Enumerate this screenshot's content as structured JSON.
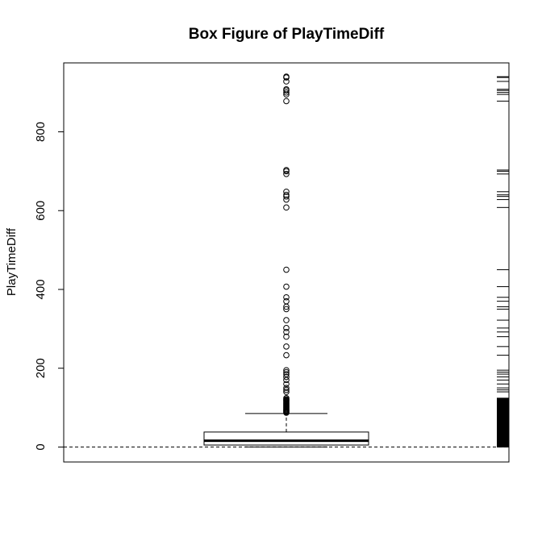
{
  "chart_data": {
    "type": "box",
    "title": "Box Figure of PlayTimeDiff",
    "ylabel": "PlayTimeDiff",
    "xlabel": "",
    "ylim": [
      -38,
      975
    ],
    "yticks": [
      0,
      200,
      400,
      600,
      800
    ],
    "box": {
      "q1": 5,
      "median": 16,
      "q3": 38,
      "whisker_low": 0,
      "whisker_high": 85
    },
    "reference_line": 0,
    "outliers": [
      87,
      89,
      91,
      93,
      95,
      97,
      99,
      101,
      103,
      105,
      107,
      109,
      111,
      113,
      115,
      117,
      119,
      121,
      124,
      140,
      145,
      150,
      160,
      170,
      178,
      185,
      190,
      195,
      233,
      255,
      280,
      292,
      302,
      322,
      350,
      356,
      370,
      380,
      407,
      450,
      608,
      628,
      636,
      640,
      648,
      693,
      700,
      703,
      878,
      895,
      900,
      905,
      908,
      928,
      938,
      940
    ],
    "rug": [
      0,
      5,
      10,
      15,
      20,
      25,
      30,
      35,
      40,
      45,
      50,
      55,
      60,
      65,
      70,
      75,
      80,
      85,
      90,
      95,
      100,
      105,
      110,
      115,
      120,
      124,
      140,
      145,
      150,
      160,
      170,
      178,
      185,
      190,
      195,
      233,
      255,
      280,
      292,
      302,
      322,
      350,
      356,
      370,
      380,
      407,
      450,
      608,
      628,
      636,
      640,
      648,
      693,
      700,
      703,
      878,
      895,
      900,
      905,
      908,
      928,
      938,
      940
    ]
  }
}
